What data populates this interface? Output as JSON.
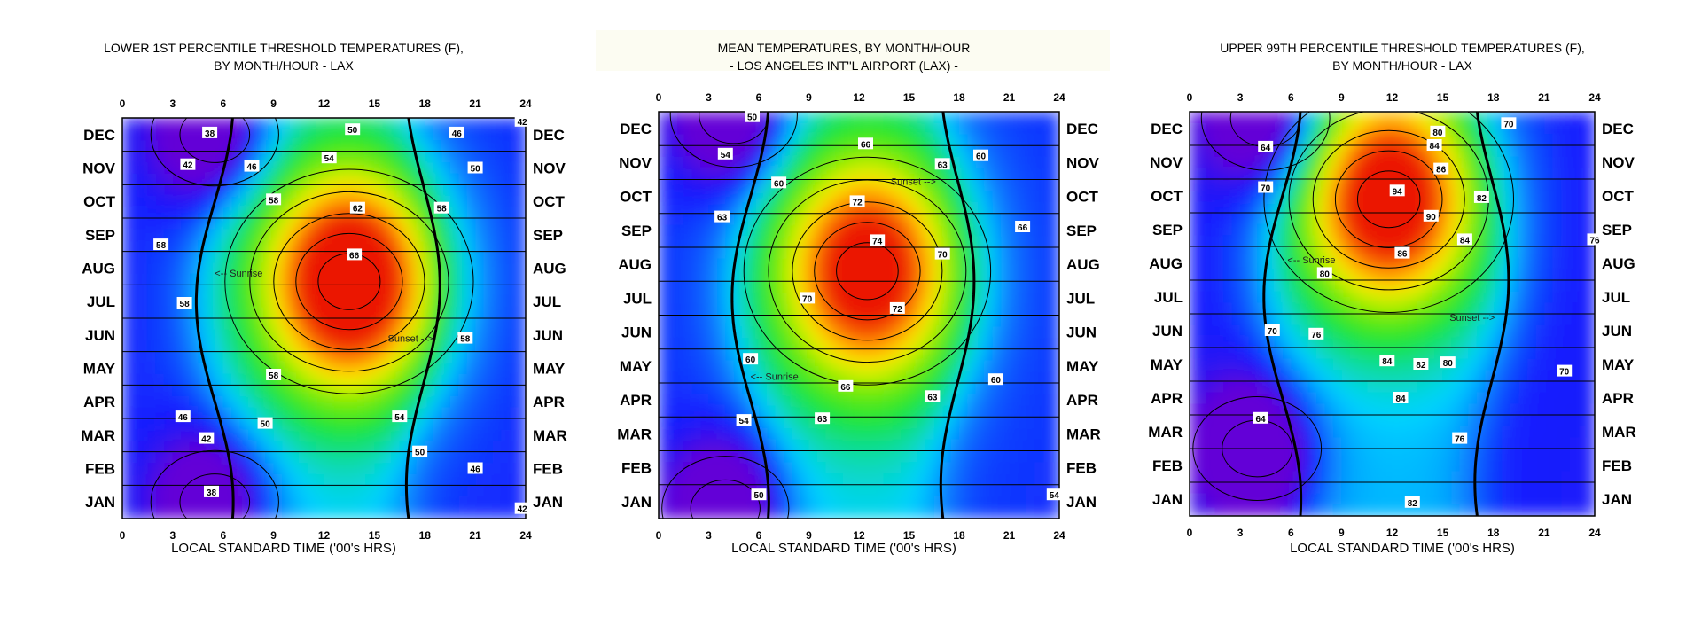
{
  "chart_data": [
    {
      "type": "heatmap",
      "title_lines": [
        "LOWER 1ST PERCENTILE THRESHOLD TEMPERATURES (F),",
        "BY MONTH/HOUR -  LAX"
      ],
      "xlabel": "LOCAL STANDARD TIME ('00's HRS)",
      "x_ticks": [
        "0",
        "3",
        "6",
        "9",
        "12",
        "15",
        "18",
        "21",
        "24"
      ],
      "xlim": [
        0,
        24
      ],
      "y_categories": [
        "DEC",
        "NOV",
        "OCT",
        "SEP",
        "AUG",
        "JUL",
        "JUN",
        "MAY",
        "APR",
        "MAR",
        "FEB",
        "JAN"
      ],
      "value_range": [
        36,
        66
      ],
      "hot_spot": {
        "hour": 13.5,
        "month_index": 4.4,
        "value": 66
      },
      "cold_spots": [
        {
          "hour": 5.5,
          "month_index": 0,
          "value": 38
        },
        {
          "hour": 5.5,
          "month_index": 11,
          "value": 38
        }
      ],
      "contour_labels": [
        {
          "text": "38",
          "hour": 5.2,
          "month_index": -0.05
        },
        {
          "text": "42",
          "hour": 3.9,
          "month_index": 0.9
        },
        {
          "text": "46",
          "hour": 7.7,
          "month_index": 0.95
        },
        {
          "text": "50",
          "hour": 13.7,
          "month_index": -0.15
        },
        {
          "text": "46",
          "hour": 19.9,
          "month_index": -0.05
        },
        {
          "text": "42",
          "hour": 23.8,
          "month_index": -0.4
        },
        {
          "text": "54",
          "hour": 12.3,
          "month_index": 0.7
        },
        {
          "text": "50",
          "hour": 21.0,
          "month_index": 1.0
        },
        {
          "text": "58",
          "hour": 9.0,
          "month_index": 1.95
        },
        {
          "text": "62",
          "hour": 14.0,
          "month_index": 2.2
        },
        {
          "text": "58",
          "hour": 19.0,
          "month_index": 2.2
        },
        {
          "text": "58",
          "hour": 2.3,
          "month_index": 3.3
        },
        {
          "text": "66",
          "hour": 13.8,
          "month_index": 3.6
        },
        {
          "text": "58",
          "hour": 3.7,
          "month_index": 5.05
        },
        {
          "text": "58",
          "hour": 20.4,
          "month_index": 6.1
        },
        {
          "text": "58",
          "hour": 9.0,
          "month_index": 7.2
        },
        {
          "text": "46",
          "hour": 3.6,
          "month_index": 8.45
        },
        {
          "text": "50",
          "hour": 8.5,
          "month_index": 8.65
        },
        {
          "text": "54",
          "hour": 16.5,
          "month_index": 8.45
        },
        {
          "text": "42",
          "hour": 5.0,
          "month_index": 9.1
        },
        {
          "text": "50",
          "hour": 17.7,
          "month_index": 9.5
        },
        {
          "text": "46",
          "hour": 21.0,
          "month_index": 10.0
        },
        {
          "text": "38",
          "hour": 5.3,
          "month_index": 10.7
        },
        {
          "text": "42",
          "hour": 23.8,
          "month_index": 11.2
        }
      ],
      "annotations": [
        {
          "text": "<-- Sunrise",
          "hour": 5.5,
          "month_index": 4.15
        },
        {
          "text": "Sunset -->",
          "hour": 15.8,
          "month_index": 6.1
        }
      ]
    },
    {
      "type": "heatmap",
      "title_lines": [
        "MEAN TEMPERATURES,  BY MONTH/HOUR",
        "- LOS ANGELES INT''L AIRPORT (LAX) -"
      ],
      "xlabel": "LOCAL STANDARD TIME ('00's HRS)",
      "x_ticks": [
        "0",
        "3",
        "6",
        "9",
        "12",
        "15",
        "18",
        "21",
        "24"
      ],
      "xlim": [
        0,
        24
      ],
      "y_categories": [
        "DEC",
        "NOV",
        "OCT",
        "SEP",
        "AUG",
        "JUL",
        "JUN",
        "MAY",
        "APR",
        "MAR",
        "FEB",
        "JAN"
      ],
      "value_range": [
        48,
        76
      ],
      "hot_spot": {
        "hour": 12.5,
        "month_index": 4.2,
        "value": 74
      },
      "cold_spots": [
        {
          "hour": 4.5,
          "month_index": -0.4,
          "value": 50
        },
        {
          "hour": 4.0,
          "month_index": 11.2,
          "value": 50
        }
      ],
      "contour_labels": [
        {
          "text": "50",
          "hour": 5.6,
          "month_index": -0.35
        },
        {
          "text": "54",
          "hour": 4.0,
          "month_index": 0.75
        },
        {
          "text": "66",
          "hour": 12.4,
          "month_index": 0.45
        },
        {
          "text": "63",
          "hour": 17.0,
          "month_index": 1.05
        },
        {
          "text": "60",
          "hour": 19.3,
          "month_index": 0.8
        },
        {
          "text": "60",
          "hour": 7.2,
          "month_index": 1.6
        },
        {
          "text": "63",
          "hour": 3.8,
          "month_index": 2.6
        },
        {
          "text": "72",
          "hour": 11.9,
          "month_index": 2.15
        },
        {
          "text": "66",
          "hour": 21.8,
          "month_index": 2.9
        },
        {
          "text": "74",
          "hour": 13.1,
          "month_index": 3.3
        },
        {
          "text": "70",
          "hour": 17.0,
          "month_index": 3.7
        },
        {
          "text": "70",
          "hour": 8.9,
          "month_index": 5.0
        },
        {
          "text": "72",
          "hour": 14.3,
          "month_index": 5.3
        },
        {
          "text": "60",
          "hour": 5.5,
          "month_index": 6.8
        },
        {
          "text": "66",
          "hour": 11.2,
          "month_index": 7.6
        },
        {
          "text": "60",
          "hour": 20.2,
          "month_index": 7.4
        },
        {
          "text": "63",
          "hour": 16.4,
          "month_index": 7.9
        },
        {
          "text": "54",
          "hour": 5.1,
          "month_index": 8.6
        },
        {
          "text": "63",
          "hour": 9.8,
          "month_index": 8.55
        },
        {
          "text": "50",
          "hour": 6.0,
          "month_index": 10.8
        },
        {
          "text": "54",
          "hour": 23.7,
          "month_index": 10.8
        }
      ],
      "annotations": [
        {
          "text": "<-- Sunrise",
          "hour": 5.5,
          "month_index": 7.3
        },
        {
          "text": "Sunset -->",
          "hour": 13.9,
          "month_index": 1.55
        }
      ]
    },
    {
      "type": "heatmap",
      "title_lines": [
        "UPPER 99TH PERCENTILE THRESHOLD TEMPERATURES (F),",
        "BY MONTH/HOUR -  LAX"
      ],
      "xlabel": "LOCAL STANDARD TIME ('00's HRS)",
      "x_ticks": [
        "0",
        "3",
        "6",
        "9",
        "12",
        "15",
        "18",
        "21",
        "24"
      ],
      "xlim": [
        0,
        24
      ],
      "y_categories": [
        "DEC",
        "NOV",
        "OCT",
        "SEP",
        "AUG",
        "JUL",
        "JUN",
        "MAY",
        "APR",
        "MAR",
        "FEB",
        "JAN"
      ],
      "value_range": [
        60,
        96
      ],
      "hot_spot": {
        "hour": 11.8,
        "month_index": 2.1,
        "value": 94
      },
      "cold_spots": [
        {
          "hour": 4.5,
          "month_index": -0.3,
          "value": 62
        },
        {
          "hour": 4.0,
          "month_index": 9.5,
          "value": 62
        }
      ],
      "contour_labels": [
        {
          "text": "64",
          "hour": 4.5,
          "month_index": 0.55
        },
        {
          "text": "70",
          "hour": 18.9,
          "month_index": -0.15
        },
        {
          "text": "80",
          "hour": 14.7,
          "month_index": 0.1
        },
        {
          "text": "84",
          "hour": 14.5,
          "month_index": 0.5
        },
        {
          "text": "86",
          "hour": 14.9,
          "month_index": 1.2
        },
        {
          "text": "70",
          "hour": 4.5,
          "month_index": 1.75
        },
        {
          "text": "94",
          "hour": 12.3,
          "month_index": 1.85
        },
        {
          "text": "82",
          "hour": 17.3,
          "month_index": 2.05
        },
        {
          "text": "90",
          "hour": 14.3,
          "month_index": 2.6
        },
        {
          "text": "84",
          "hour": 16.3,
          "month_index": 3.3
        },
        {
          "text": "76",
          "hour": 24.0,
          "month_index": 3.3
        },
        {
          "text": "86",
          "hour": 12.6,
          "month_index": 3.7
        },
        {
          "text": "80",
          "hour": 8.0,
          "month_index": 4.3
        },
        {
          "text": "70",
          "hour": 4.9,
          "month_index": 6.0
        },
        {
          "text": "76",
          "hour": 7.5,
          "month_index": 6.1
        },
        {
          "text": "84",
          "hour": 11.7,
          "month_index": 6.9
        },
        {
          "text": "82",
          "hour": 13.7,
          "month_index": 7.0
        },
        {
          "text": "80",
          "hour": 15.3,
          "month_index": 6.95
        },
        {
          "text": "70",
          "hour": 22.2,
          "month_index": 7.2
        },
        {
          "text": "84",
          "hour": 12.5,
          "month_index": 8.0
        },
        {
          "text": "64",
          "hour": 4.2,
          "month_index": 8.6
        },
        {
          "text": "76",
          "hour": 16.0,
          "month_index": 9.2
        },
        {
          "text": "82",
          "hour": 13.2,
          "month_index": 11.1
        }
      ],
      "annotations": [
        {
          "text": "<-- Sunrise",
          "hour": 5.8,
          "month_index": 3.9
        },
        {
          "text": "Sunset -->",
          "hour": 15.4,
          "month_index": 5.6
        }
      ]
    }
  ]
}
